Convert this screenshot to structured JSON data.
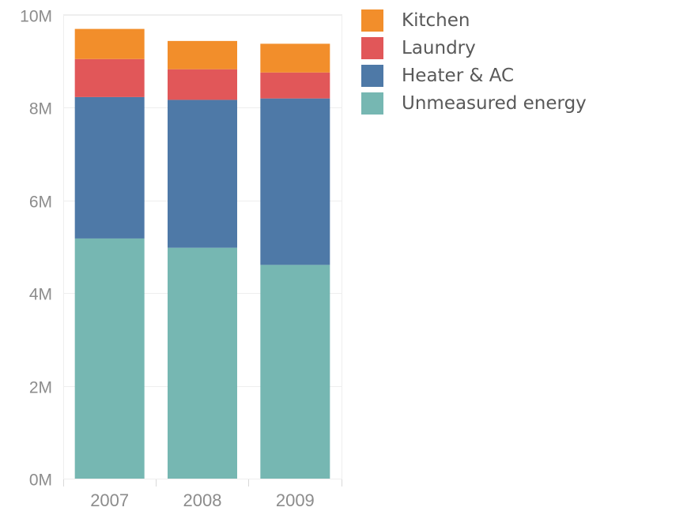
{
  "chart_data": {
    "type": "bar",
    "stacked": true,
    "categories": [
      "2007",
      "2008",
      "2009"
    ],
    "series": [
      {
        "name": "Unmeasured energy",
        "color": "#76B7B2",
        "values": [
          5.18,
          4.98,
          4.61
        ]
      },
      {
        "name": "Heater & AC",
        "color": "#4E79A7",
        "values": [
          3.05,
          3.19,
          3.59
        ]
      },
      {
        "name": "Laundry",
        "color": "#E15759",
        "values": [
          0.82,
          0.66,
          0.56
        ]
      },
      {
        "name": "Kitchen",
        "color": "#F28E2B",
        "values": [
          0.65,
          0.61,
          0.62
        ]
      }
    ],
    "legend_order": [
      "Kitchen",
      "Laundry",
      "Heater & AC",
      "Unmeasured energy"
    ],
    "legend_position": "top-right",
    "y_ticks": [
      {
        "value": 0,
        "label": "0M"
      },
      {
        "value": 2,
        "label": "2M"
      },
      {
        "value": 4,
        "label": "4M"
      },
      {
        "value": 6,
        "label": "6M"
      },
      {
        "value": 8,
        "label": "8M"
      },
      {
        "value": 10,
        "label": "10M"
      }
    ],
    "ylim": [
      0,
      10
    ],
    "grid": true,
    "title": "",
    "xlabel": "",
    "ylabel": ""
  }
}
